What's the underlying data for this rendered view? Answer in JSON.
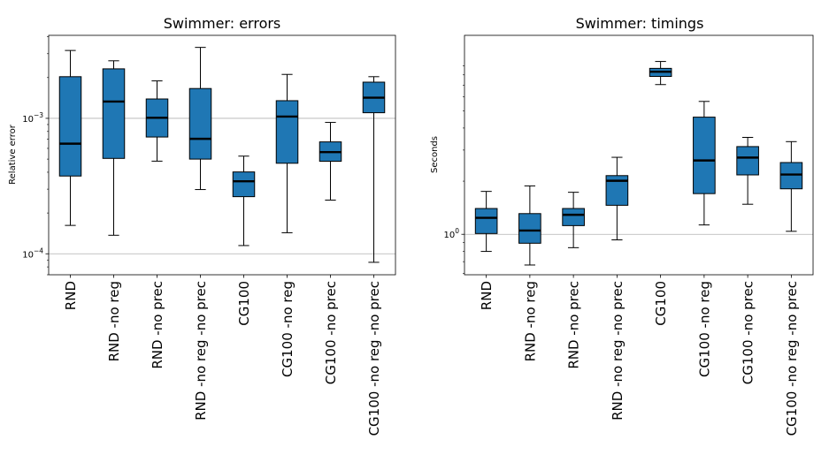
{
  "chart_data": [
    {
      "type": "box",
      "title": "Swimmer: errors",
      "ylabel": "Relative error",
      "xlabel": "",
      "yscale": "log",
      "ylim": [
        7e-05,
        0.0041
      ],
      "grid": "major-y",
      "major_ticks": [
        {
          "value": 0.0001,
          "base": "10",
          "exp": "−4"
        },
        {
          "value": 0.001,
          "base": "10",
          "exp": "−3"
        }
      ],
      "color": "#1f77b4",
      "categories": [
        "RND",
        "RND -no reg",
        "RND -no prec",
        "RND -no reg -no prec",
        "CG100",
        "CG100 -no reg",
        "CG100 -no prec",
        "CG100 -no reg -no prec"
      ],
      "boxes": [
        {
          "whislo": 0.000162,
          "q1": 0.000375,
          "med": 0.00065,
          "q3": 0.00203,
          "whishi": 0.00317
        },
        {
          "whislo": 0.000137,
          "q1": 0.000506,
          "med": 0.00133,
          "q3": 0.00232,
          "whishi": 0.00266
        },
        {
          "whislo": 0.000483,
          "q1": 0.000728,
          "med": 0.00101,
          "q3": 0.00139,
          "whishi": 0.00189
        },
        {
          "whislo": 0.000298,
          "q1": 0.0005,
          "med": 0.000706,
          "q3": 0.00166,
          "whishi": 0.00334
        },
        {
          "whislo": 0.000115,
          "q1": 0.000264,
          "med": 0.000343,
          "q3": 0.000402,
          "whishi": 0.000526
        },
        {
          "whislo": 0.000143,
          "q1": 0.000466,
          "med": 0.00103,
          "q3": 0.00135,
          "whishi": 0.00211
        },
        {
          "whislo": 0.000249,
          "q1": 0.000482,
          "med": 0.000563,
          "q3": 0.00067,
          "whishi": 0.000933
        },
        {
          "whislo": 8.65e-05,
          "q1": 0.0011,
          "med": 0.00142,
          "q3": 0.00185,
          "whishi": 0.00203
        }
      ]
    },
    {
      "type": "box",
      "title": "Swimmer: timings",
      "ylabel": "Seconds",
      "xlabel": "",
      "yscale": "log",
      "ylim": [
        0.59,
        13.4
      ],
      "grid": "major-y",
      "major_ticks": [
        {
          "value": 1,
          "base": "10",
          "exp": "0"
        }
      ],
      "color": "#1f77b4",
      "categories": [
        "RND",
        "RND -no reg",
        "RND -no prec",
        "RND -no reg -no prec",
        "CG100",
        "CG100 -no reg",
        "CG100 -no prec",
        "CG100 -no reg -no prec"
      ],
      "boxes": [
        {
          "whislo": 0.8,
          "q1": 1.01,
          "med": 1.24,
          "q3": 1.4,
          "whishi": 1.75
        },
        {
          "whislo": 0.67,
          "q1": 0.89,
          "med": 1.05,
          "q3": 1.31,
          "whishi": 1.88
        },
        {
          "whislo": 0.84,
          "q1": 1.12,
          "med": 1.29,
          "q3": 1.4,
          "whishi": 1.73
        },
        {
          "whislo": 0.93,
          "q1": 1.46,
          "med": 2.01,
          "q3": 2.15,
          "whishi": 2.73
        },
        {
          "whislo": 7.05,
          "q1": 7.84,
          "med": 8.34,
          "q3": 8.71,
          "whishi": 9.53
        },
        {
          "whislo": 1.13,
          "q1": 1.7,
          "med": 2.62,
          "q3": 4.61,
          "whishi": 5.66
        },
        {
          "whislo": 1.48,
          "q1": 2.17,
          "med": 2.72,
          "q3": 3.14,
          "whishi": 3.54
        },
        {
          "whislo": 1.04,
          "q1": 1.81,
          "med": 2.18,
          "q3": 2.55,
          "whishi": 3.35
        }
      ]
    }
  ]
}
